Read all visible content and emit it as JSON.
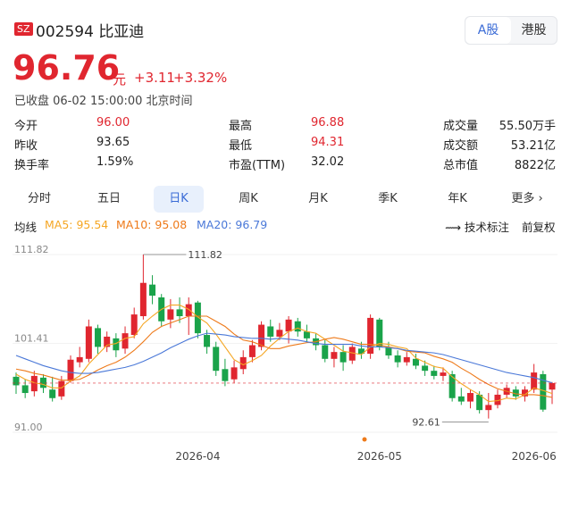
{
  "header": {
    "market": "SZ",
    "code": "002594",
    "name": "比亚迪",
    "tabs": [
      "A股",
      "港股"
    ]
  },
  "quote": {
    "price": "96.76",
    "unit": "元",
    "change": "+3.11",
    "change_pct": "+3.32%",
    "status": "已收盘 06-02 15:00:00 北京时间"
  },
  "stats": {
    "rows": [
      [
        [
          "今开",
          "96.00"
        ],
        [
          "最高",
          "96.88"
        ],
        [
          "成交量",
          "55.50万手"
        ]
      ],
      [
        [
          "昨收",
          "93.65"
        ],
        [
          "最低",
          "94.31"
        ],
        [
          "成交额",
          "53.21亿"
        ]
      ],
      [
        [
          "换手率",
          "1.59%"
        ],
        [
          "市盈(TTM)",
          "32.02"
        ],
        [
          "总市值",
          "8822亿"
        ]
      ]
    ]
  },
  "period_tabs": {
    "items": [
      "分时",
      "五日",
      "日K",
      "周K",
      "月K",
      "季K",
      "年K",
      "更多"
    ],
    "selected": 2
  },
  "indicator_bar": {
    "label": "均线",
    "tools": [
      "技术标注",
      "前复权"
    ]
  },
  "chart_data": {
    "type": "candlestick",
    "categories": [
      null,
      null,
      null,
      null,
      null,
      null,
      null,
      null,
      null,
      null,
      null,
      null,
      null,
      null,
      null,
      null,
      null,
      null,
      null,
      null,
      "2026-04",
      null,
      null,
      null,
      null,
      null,
      null,
      null,
      null,
      null,
      null,
      null,
      null,
      null,
      null,
      null,
      null,
      null,
      null,
      null,
      "2026-05",
      null,
      null,
      null,
      null,
      null,
      null,
      null,
      null,
      null,
      null,
      null,
      null,
      null,
      null,
      null,
      null,
      "2026-06",
      null,
      null
    ],
    "open": [
      97.5,
      96.5,
      95.8,
      97.4,
      96.0,
      95.2,
      97.0,
      99.2,
      99.6,
      103.2,
      101.0,
      102.0,
      100.8,
      102.4,
      104.6,
      108.3,
      106.8,
      104.2,
      105.4,
      104.6,
      106.2,
      102.4,
      101.0,
      98.4,
      97.2,
      98.4,
      99.8,
      101.0,
      103.4,
      102.2,
      102.8,
      104.0,
      102.8,
      102.0,
      101.2,
      99.6,
      100.4,
      99.4,
      100.8,
      100.2,
      104.2,
      101.0,
      100.0,
      99.2,
      99.6,
      98.8,
      98.2,
      97.6,
      97.8,
      95.2,
      94.6,
      95.4,
      93.6,
      94.2,
      95.4,
      96.0,
      95.2,
      96.0,
      97.8,
      96.0
    ],
    "close": [
      96.5,
      95.6,
      97.6,
      96.2,
      95.0,
      97.0,
      99.5,
      99.8,
      103.4,
      101.0,
      102.2,
      100.6,
      102.6,
      104.8,
      108.5,
      107.0,
      104.0,
      105.4,
      104.6,
      106.0,
      102.6,
      101.0,
      98.2,
      97.0,
      98.6,
      99.8,
      101.2,
      103.6,
      102.2,
      103.0,
      104.2,
      102.8,
      102.0,
      101.2,
      99.6,
      100.4,
      99.2,
      101.0,
      100.2,
      104.4,
      101.0,
      100.0,
      99.2,
      99.8,
      98.8,
      98.2,
      97.6,
      98.0,
      95.0,
      94.6,
      95.6,
      93.6,
      94.2,
      95.4,
      96.2,
      95.2,
      96.0,
      98.0,
      93.65,
      96.76
    ],
    "high": [
      98.0,
      97.2,
      98.2,
      97.8,
      97.5,
      97.6,
      100.0,
      101.0,
      104.2,
      103.6,
      102.8,
      102.6,
      103.4,
      105.6,
      111.82,
      109.4,
      107.2,
      106.6,
      106.8,
      106.8,
      106.4,
      103.0,
      101.6,
      99.6,
      99.4,
      100.6,
      101.8,
      104.0,
      104.2,
      103.8,
      104.6,
      104.4,
      103.6,
      102.6,
      101.8,
      101.0,
      101.2,
      101.4,
      101.6,
      104.8,
      104.4,
      101.6,
      100.6,
      100.4,
      100.2,
      99.4,
      98.8,
      98.6,
      98.2,
      96.2,
      96.0,
      95.8,
      95.6,
      96.0,
      96.6,
      96.4,
      96.4,
      99.0,
      98.2,
      96.88
    ],
    "low": [
      95.5,
      95.0,
      95.2,
      95.6,
      94.6,
      94.8,
      96.8,
      98.6,
      99.2,
      100.2,
      100.4,
      99.8,
      100.2,
      102.0,
      104.2,
      106.0,
      103.4,
      103.2,
      103.8,
      102.4,
      102.0,
      100.2,
      97.6,
      96.4,
      96.8,
      97.8,
      99.2,
      100.6,
      101.6,
      101.8,
      101.4,
      102.2,
      101.6,
      100.6,
      99.2,
      98.6,
      98.2,
      99.0,
      99.6,
      99.6,
      100.6,
      99.6,
      98.6,
      98.8,
      98.4,
      97.6,
      97.2,
      97.0,
      94.6,
      94.2,
      93.8,
      93.2,
      92.61,
      93.8,
      95.0,
      94.8,
      94.6,
      95.6,
      93.4,
      94.31
    ],
    "up_color": "#e0262f",
    "down_color": "#1aa34a",
    "max_label": "111.82",
    "min_label": "92.61",
    "last_price_line": true,
    "series": [
      {
        "name": "MA5: 95.54",
        "color": "#f5a623",
        "values": [
          97.8,
          97.2,
          96.8,
          96.6,
          96.2,
          96.2,
          97.0,
          97.6,
          99.0,
          100.1,
          101.2,
          101.4,
          102.0,
          102.2,
          103.7,
          104.6,
          105.4,
          105.9,
          105.9,
          105.4,
          104.5,
          103.8,
          102.5,
          101.0,
          99.5,
          98.9,
          99.4,
          100.0,
          101.1,
          102.0,
          102.8,
          103.2,
          102.8,
          102.6,
          101.9,
          101.2,
          100.5,
          100.3,
          100.1,
          101.0,
          101.4,
          101.3,
          101.0,
          100.8,
          99.7,
          99.2,
          98.7,
          98.5,
          97.5,
          96.7,
          96.0,
          95.4,
          94.6,
          94.7,
          95.0,
          94.9,
          95.4,
          96.2,
          95.9,
          95.54
        ]
      },
      {
        "name": "MA10: 95.08",
        "color": "#ee7a1a",
        "values": [
          98.4,
          98.2,
          97.9,
          97.7,
          97.4,
          97.1,
          97.1,
          97.2,
          97.7,
          98.3,
          98.8,
          99.2,
          99.8,
          100.6,
          101.6,
          102.7,
          103.4,
          103.8,
          104.2,
          104.6,
          104.6,
          104.6,
          104.0,
          103.4,
          102.5,
          101.8,
          101.6,
          101.2,
          100.8,
          100.8,
          101.1,
          101.3,
          101.5,
          101.6,
          101.9,
          102.1,
          101.9,
          101.6,
          101.3,
          101.3,
          101.2,
          101.0,
          100.8,
          100.5,
          100.4,
          100.3,
          99.9,
          99.6,
          99.2,
          98.5,
          97.9,
          97.2,
          96.6,
          96.1,
          95.8,
          95.5,
          95.4,
          95.4,
          95.3,
          95.08
        ]
      },
      {
        "name": "MA20: 96.79",
        "color": "#4a78d8",
        "values": [
          100.0,
          99.6,
          99.2,
          98.8,
          98.5,
          98.2,
          98.0,
          97.9,
          97.9,
          98.0,
          98.2,
          98.4,
          98.6,
          98.9,
          99.3,
          99.8,
          100.3,
          100.9,
          101.4,
          101.9,
          102.3,
          102.6,
          102.5,
          102.4,
          102.2,
          102.1,
          102.0,
          102.0,
          101.9,
          102.0,
          101.9,
          101.8,
          101.6,
          101.4,
          101.3,
          101.3,
          101.3,
          101.3,
          101.1,
          101.0,
          101.0,
          100.9,
          100.8,
          100.6,
          100.5,
          100.4,
          100.3,
          100.1,
          99.8,
          99.5,
          99.2,
          98.9,
          98.6,
          98.3,
          98.0,
          97.8,
          97.6,
          97.4,
          97.1,
          96.79
        ]
      }
    ],
    "ylim": [
      91,
      111.82
    ],
    "yticks": [
      111.82,
      101.41,
      {
        "value": 91,
        "label": "91.00"
      }
    ]
  }
}
